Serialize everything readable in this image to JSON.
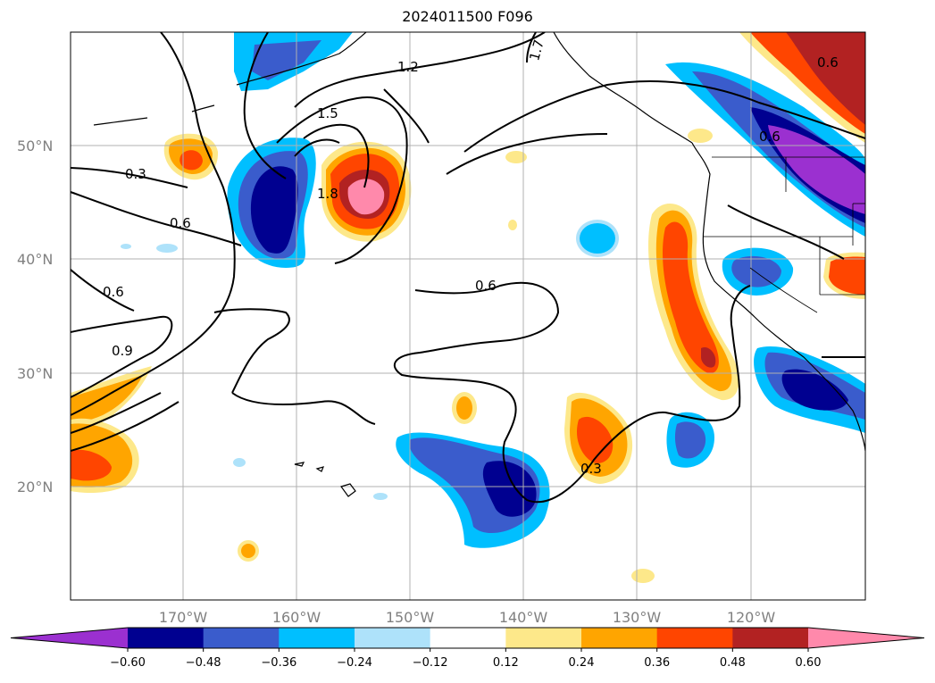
{
  "title": "2024011500 F096",
  "map": {
    "lat_labels": [
      "50°N",
      "40°N",
      "30°N",
      "20°N"
    ],
    "lon_labels": [
      "170°W",
      "160°W",
      "150°W",
      "140°W",
      "130°W",
      "120°W"
    ],
    "contour_labels": [
      "1.2",
      "1.5",
      "1.8",
      "1.7",
      "0.3",
      "0.6",
      "0.6",
      "0.9",
      "0.6",
      "0.3",
      "0.6",
      "0.6"
    ]
  },
  "colorbar": {
    "ticks": [
      "−0.60",
      "−0.48",
      "−0.36",
      "−0.24",
      "−0.12",
      "0.12",
      "0.24",
      "0.36",
      "0.48",
      "0.60"
    ],
    "colors": [
      "#9b30d0",
      "#000090",
      "#3a5ccc",
      "#00bfff",
      "#aee2fa",
      "#ffffff",
      "#fde88a",
      "#ffa500",
      "#ff4500",
      "#b22222",
      "#ff89ab"
    ]
  }
}
